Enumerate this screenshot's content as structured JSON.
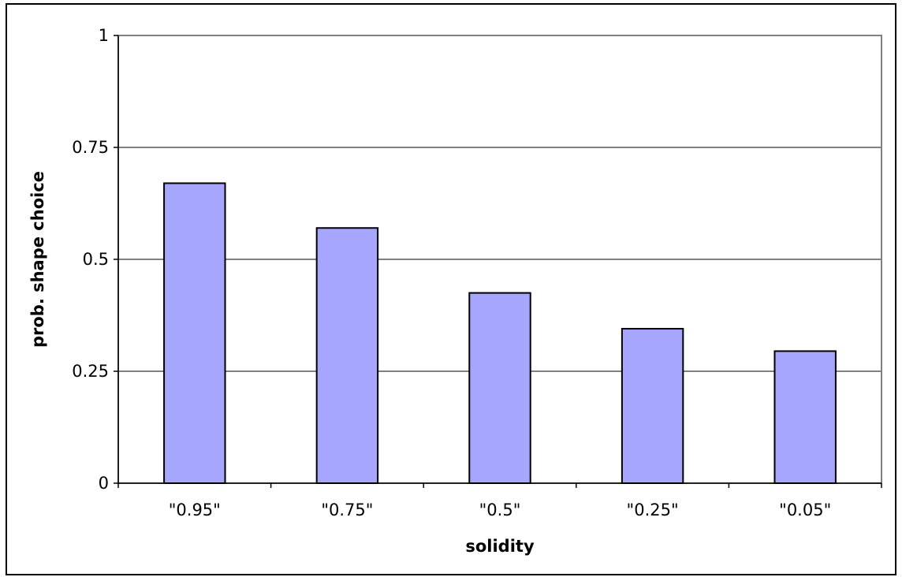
{
  "chart_data": {
    "type": "bar",
    "categories": [
      "\"0.95\"",
      "\"0.75\"",
      "\"0.5\"",
      "\"0.25\"",
      "\"0.05\""
    ],
    "values": [
      0.67,
      0.57,
      0.425,
      0.345,
      0.295
    ],
    "xlabel": "solidity",
    "ylabel": "prob. shape choice",
    "ylim": [
      0,
      1
    ],
    "yticks": [
      0,
      0.25,
      0.5,
      0.75,
      1
    ],
    "ytick_labels": [
      "0",
      "0.25",
      "0.5",
      "0.75",
      "1"
    ],
    "grid": true,
    "legend": "none",
    "colors": {
      "bar_fill": "#a6a6ff",
      "bar_stroke": "#000000",
      "plot_border": "#808080",
      "gridline": "#000000"
    }
  }
}
